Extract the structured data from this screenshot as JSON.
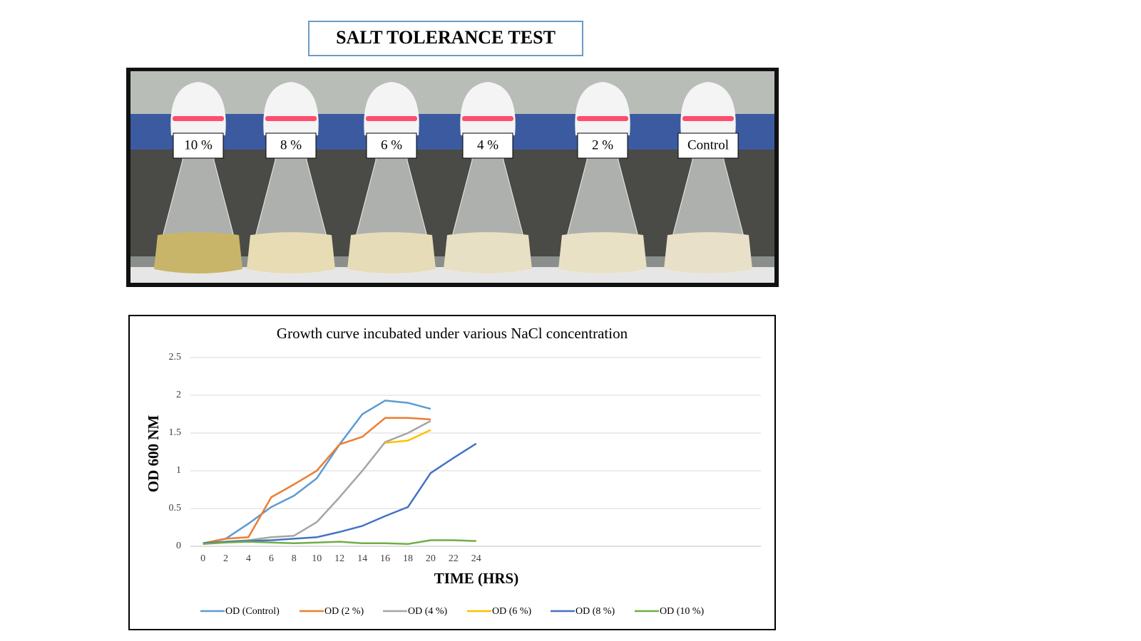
{
  "header": {
    "title": "SALT TOLERANCE TEST"
  },
  "photo": {
    "labels": [
      "10 %",
      "8 %",
      "6 %",
      "4 %",
      "2 %",
      "Control"
    ]
  },
  "chart_data": {
    "type": "line",
    "title": "Growth curve incubated under various NaCl concentration",
    "x_label": "TIME (HRS)",
    "y_label": "OD 600 NM",
    "x": [
      0,
      2,
      4,
      6,
      8,
      10,
      12,
      14,
      16,
      18,
      20,
      22,
      24
    ],
    "xlim": [
      -1.1,
      49
    ],
    "xticks": [
      0,
      2,
      4,
      6,
      8,
      10,
      12,
      14,
      16,
      18,
      20,
      22,
      24
    ],
    "ylim": [
      0,
      2.5
    ],
    "yticks": [
      0,
      0.5,
      1,
      1.5,
      2,
      2.5
    ],
    "grid": true,
    "legend": "bottom",
    "series": [
      {
        "name": "OD (Control)",
        "color": "#5b9bd5",
        "values": [
          0.04,
          0.1,
          0.3,
          0.52,
          0.67,
          0.9,
          1.35,
          1.75,
          1.93,
          1.9,
          1.82,
          null,
          null
        ]
      },
      {
        "name": "OD (2 %)",
        "color": "#ed7d31",
        "values": [
          0.04,
          0.1,
          0.12,
          0.65,
          0.82,
          1.0,
          1.35,
          1.45,
          1.7,
          1.7,
          1.68,
          null,
          null
        ]
      },
      {
        "name": "OD (4 %)",
        "color": "#a5a5a5",
        "values": [
          0.04,
          0.06,
          0.08,
          0.12,
          0.14,
          0.32,
          0.65,
          1.0,
          1.38,
          1.5,
          1.66,
          null,
          null
        ]
      },
      {
        "name": "OD (6 %)",
        "color": "#ffc000",
        "values": [
          null,
          null,
          null,
          null,
          null,
          null,
          null,
          null,
          1.37,
          1.4,
          1.54,
          null,
          null
        ]
      },
      {
        "name": "OD (8 %)",
        "color": "#4472c4",
        "values": [
          0.04,
          0.06,
          0.07,
          0.08,
          0.1,
          0.12,
          0.19,
          0.27,
          0.4,
          0.52,
          0.97,
          1.17,
          1.36
        ]
      },
      {
        "name": "OD (10 %)",
        "color": "#70ad47",
        "values": [
          0.03,
          0.05,
          0.06,
          0.05,
          0.04,
          0.05,
          0.06,
          0.04,
          0.04,
          0.03,
          0.08,
          0.08,
          0.07
        ]
      }
    ]
  }
}
